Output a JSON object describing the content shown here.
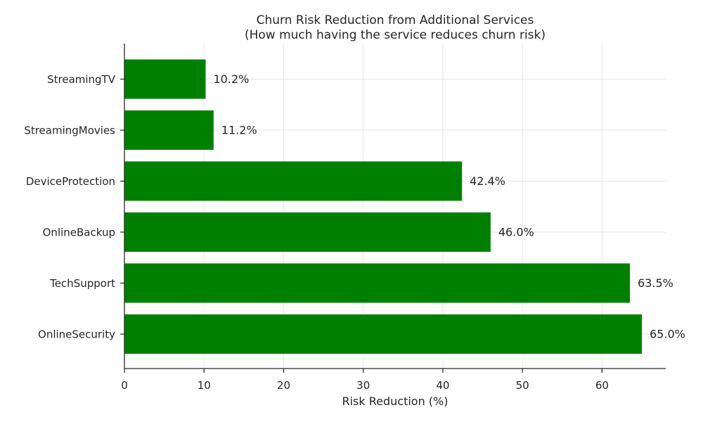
{
  "chart_data": {
    "type": "bar",
    "orientation": "horizontal",
    "title_line1": "Churn Risk Reduction from Additional Services",
    "title_line2": "(How much having the service reduces churn risk)",
    "xlabel": "Risk Reduction (%)",
    "ylabel": "",
    "categories": [
      "OnlineSecurity",
      "TechSupport",
      "OnlineBackup",
      "DeviceProtection",
      "StreamingMovies",
      "StreamingTV"
    ],
    "values": [
      65.0,
      63.5,
      46.0,
      42.4,
      11.2,
      10.2
    ],
    "value_labels": [
      "65.0%",
      "63.5%",
      "46.0%",
      "42.4%",
      "11.2%",
      "10.2%"
    ],
    "xlim": [
      0,
      68
    ],
    "xticks": [
      0,
      10,
      20,
      30,
      40,
      50,
      60
    ],
    "bar_color": "#008000",
    "grid": true
  }
}
